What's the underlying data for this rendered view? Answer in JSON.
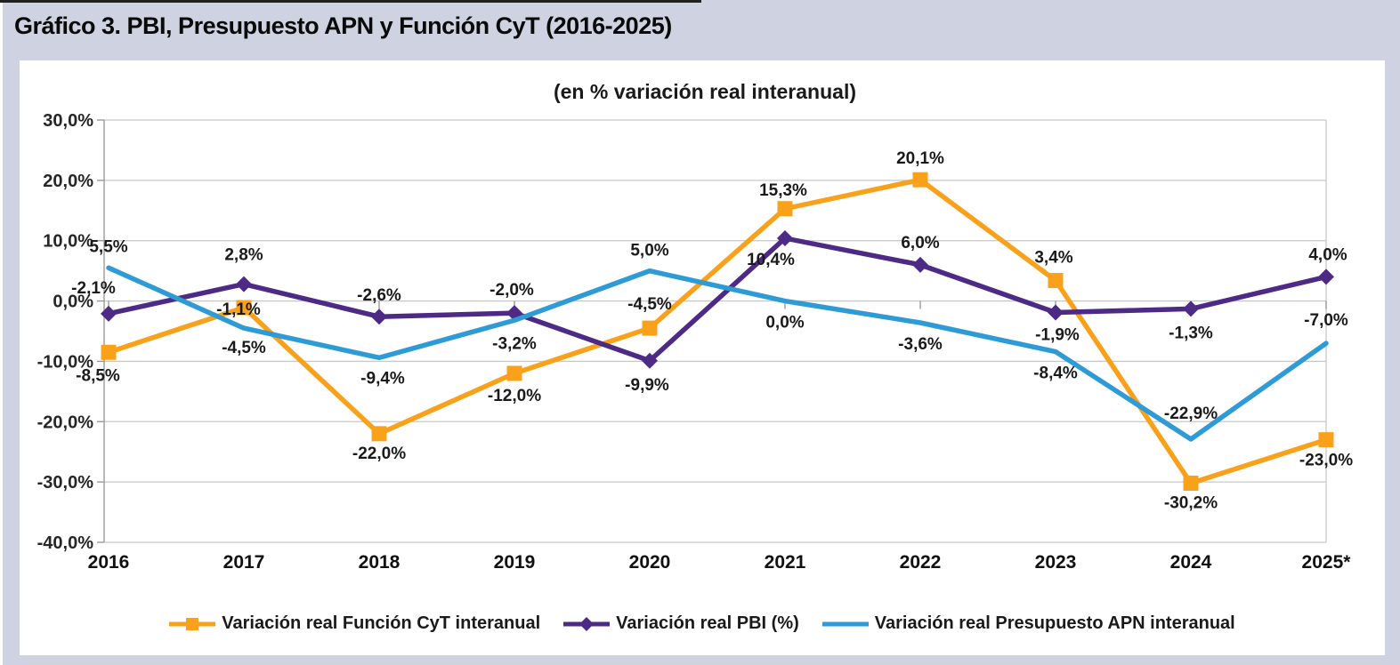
{
  "page": {
    "title": "Gráfico 3. PBI, Presupuesto APN y Función CyT (2016-2025)",
    "colors": {
      "background": "#CFD3E1",
      "panel": "#FFFFFF",
      "gridline": "#C8C8C8",
      "axis": "#9A9A9A",
      "text": "#1A1A1A"
    }
  },
  "chart_data": {
    "type": "line",
    "title": "(en % variación real interanual)",
    "categories": [
      "2016",
      "2017",
      "2018",
      "2019",
      "2020",
      "2021",
      "2022",
      "2023",
      "2024",
      "2025*"
    ],
    "series": [
      {
        "name": "Variación real Función CyT interanual",
        "color": "#F9A11B",
        "marker": "square",
        "values": [
          -8.5,
          -1.1,
          -22.0,
          -12.0,
          -4.5,
          15.3,
          20.1,
          3.4,
          -30.2,
          -23.0
        ],
        "labels": [
          "-8,5%",
          "-1,1%",
          "-22,0%",
          "-12,0%",
          "-4,5%",
          "15,3%",
          "20,1%",
          "3,4%",
          "-30,2%",
          "-23,0%"
        ],
        "label_offsets": [
          [
            -12,
            32
          ],
          [
            -6,
            8
          ],
          [
            0,
            28
          ],
          [
            0,
            31
          ],
          [
            0,
            -21
          ],
          [
            -2,
            -15
          ],
          [
            0,
            -18
          ],
          [
            -2,
            -20
          ],
          [
            0,
            28
          ],
          [
            0,
            29
          ]
        ]
      },
      {
        "name": "Variación real PBI (%)",
        "color": "#4C2A85",
        "marker": "diamond",
        "values": [
          -2.1,
          2.8,
          -2.6,
          -2.0,
          -9.9,
          10.4,
          6.0,
          -1.9,
          -1.3,
          4.0
        ],
        "labels": [
          "-2,1%",
          "2,8%",
          "-2,6%",
          "-2,0%",
          "-9,9%",
          "10,4%",
          "6,0%",
          "-1,9%",
          "-1,3%",
          "4,0%"
        ],
        "label_offsets": [
          [
            -17,
            -23
          ],
          [
            0,
            -27
          ],
          [
            0,
            -18
          ],
          [
            -3,
            -20
          ],
          [
            -3,
            33
          ],
          [
            -16,
            30
          ],
          [
            0,
            -19
          ],
          [
            2,
            31
          ],
          [
            0,
            33
          ],
          [
            2,
            -19
          ]
        ]
      },
      {
        "name": "Variación real Presupuesto APN interanual",
        "color": "#2E9BD6",
        "marker": "none",
        "values": [
          5.5,
          -4.5,
          -9.4,
          -3.2,
          5.0,
          0.0,
          -3.6,
          -8.4,
          -22.9,
          -7.0
        ],
        "labels": [
          "5,5%",
          "-4,5%",
          "-9,4%",
          "-3,2%",
          "5,0%",
          "0,0%",
          "-3,6%",
          "-8,4%",
          "-22,9%",
          "-7,0%"
        ],
        "label_offsets": [
          [
            0,
            -18
          ],
          [
            0,
            28
          ],
          [
            4,
            29
          ],
          [
            0,
            32
          ],
          [
            0,
            -17
          ],
          [
            0,
            30
          ],
          [
            0,
            30
          ],
          [
            0,
            30
          ],
          [
            0,
            -23
          ],
          [
            0,
            -20
          ]
        ]
      }
    ],
    "y_axis": {
      "min": -40,
      "max": 30,
      "step": 10,
      "tick_labels": [
        "30,0%",
        "20,0%",
        "10,0%",
        "0,0%",
        "-10,0%",
        "-20,0%",
        "-30,0%",
        "-40,0%"
      ]
    },
    "grid": true,
    "legend_position": "bottom"
  }
}
